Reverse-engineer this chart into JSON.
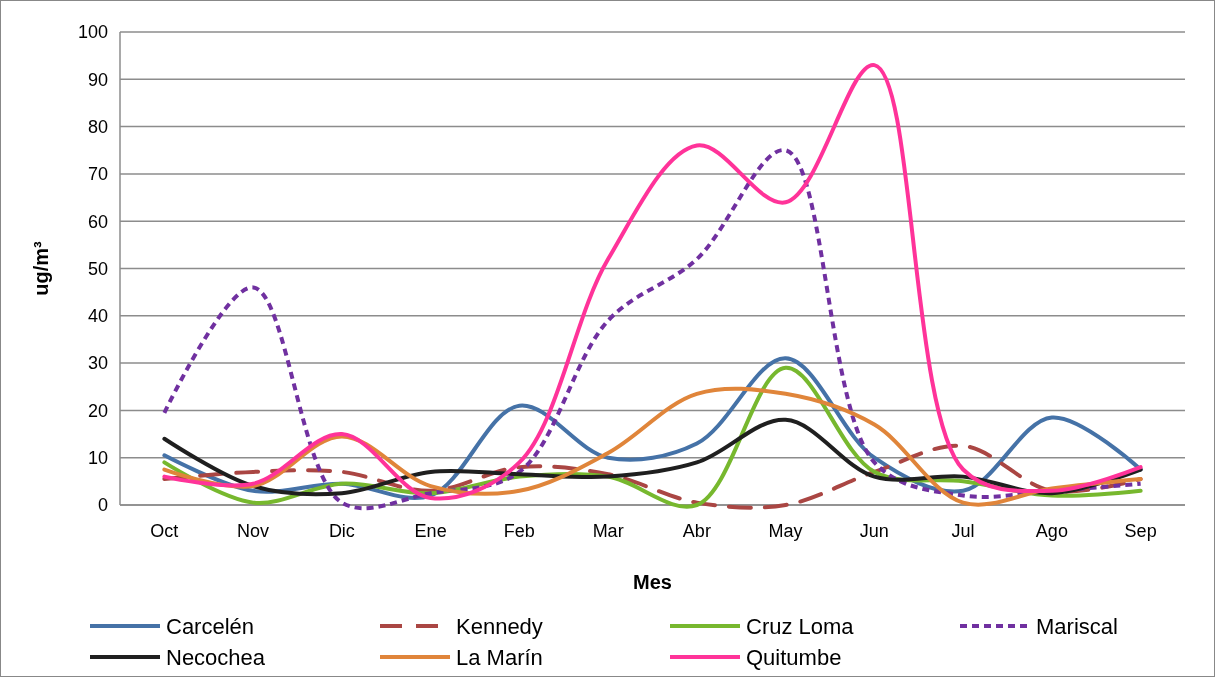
{
  "chart_data": {
    "type": "line",
    "xlabel": "Mes",
    "ylabel": "ug/m³",
    "categories": [
      "Oct",
      "Nov",
      "Dic",
      "Ene",
      "Feb",
      "Mar",
      "Abr",
      "May",
      "Jun",
      "Jul",
      "Ago",
      "Sep"
    ],
    "ylim": [
      0,
      100
    ],
    "yticks": [
      0,
      10,
      20,
      30,
      40,
      50,
      60,
      70,
      80,
      90,
      100
    ],
    "grid": "y",
    "legend": "bottom",
    "marker": "none",
    "series": [
      {
        "name": "Carcelén",
        "color": "#4572a7",
        "line_style": "solid",
        "values": [
          10.5,
          3,
          4.5,
          2,
          21,
          10,
          13,
          31,
          10,
          3,
          18.5,
          7.5
        ]
      },
      {
        "name": "Kennedy",
        "color": "#aa4643",
        "line_style": "dashed",
        "values": [
          5.5,
          7,
          7,
          3,
          8,
          6.5,
          0.5,
          0,
          7,
          12.5,
          3,
          5.5
        ]
      },
      {
        "name": "Cruz Loma",
        "color": "#77b82e",
        "line_style": "solid",
        "values": [
          9,
          0.5,
          4.5,
          2.5,
          6,
          6,
          0,
          29,
          7,
          5,
          2,
          3
        ]
      },
      {
        "name": "Mariscal",
        "color": "#7030a0",
        "line_style": "dotted",
        "values": [
          19.5,
          46,
          0.5,
          2.5,
          7,
          39,
          52,
          75,
          9,
          2,
          3,
          4.5
        ]
      },
      {
        "name": "Necochea",
        "color": "#1f1f1f",
        "line_style": "solid",
        "values": [
          14,
          4,
          2.5,
          7,
          6.5,
          6,
          9,
          18,
          6,
          6,
          2.5,
          7.5
        ]
      },
      {
        "name": "La Marín",
        "color": "#e0853a",
        "line_style": "solid",
        "values": [
          7.5,
          4,
          14.5,
          4,
          3,
          11,
          23.5,
          23.5,
          17,
          0.5,
          3.5,
          5.5
        ]
      },
      {
        "name": "Quitumbe",
        "color": "#ff3399",
        "line_style": "solid",
        "values": [
          6,
          4.5,
          15,
          1.5,
          9,
          52,
          76,
          64,
          93,
          7.5,
          3,
          8
        ]
      }
    ]
  }
}
